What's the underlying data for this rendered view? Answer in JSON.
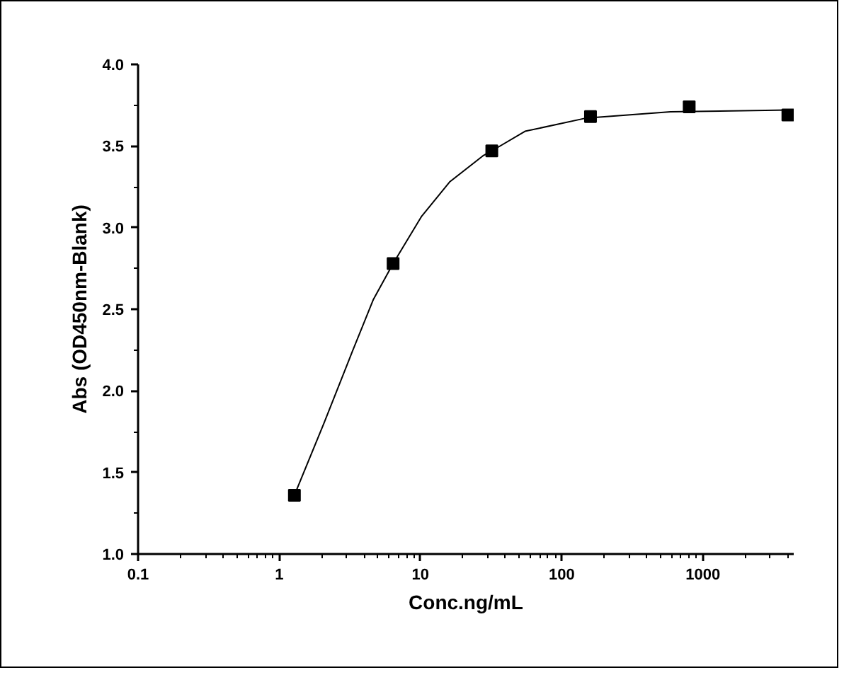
{
  "chart_data": {
    "type": "scatter",
    "xlabel": "Conc.ng/mL",
    "ylabel": "Abs (OD450nm-Blank)",
    "log": "x",
    "grid": false,
    "xlim": [
      0.1,
      4400
    ],
    "xticks": [
      {
        "value": 0.1,
        "label": "0.1"
      },
      1,
      10,
      100,
      1000
    ],
    "ylim": [
      1.0,
      4.0
    ],
    "yticks": [
      {
        "value": 1.0,
        "label": "1.0"
      },
      1.5,
      {
        "value": 2.0,
        "label": "2.0"
      },
      2.5,
      {
        "value": 3.0,
        "label": "3.0"
      },
      3.5,
      {
        "value": 4.0,
        "label": "4.0"
      }
    ],
    "series": [
      {
        "type": "line",
        "color": "#000000",
        "marker": "none",
        "line_style": "solid",
        "x": [
          1.28,
          2.07,
          3.29,
          4.64,
          6.4,
          10.2,
          16.1,
          27.7,
          32,
          55,
          147,
          590,
          4000
        ],
        "values": [
          1.36,
          1.8,
          2.24,
          2.56,
          2.78,
          3.07,
          3.28,
          3.44,
          3.47,
          3.59,
          3.67,
          3.71,
          3.72
        ]
      },
      {
        "color": "#000000",
        "marker": "square",
        "x": [
          1.28,
          6.4,
          32,
          160,
          800,
          4000
        ],
        "values": [
          1.36,
          2.78,
          3.47,
          3.68,
          3.74,
          3.69
        ]
      }
    ]
  }
}
